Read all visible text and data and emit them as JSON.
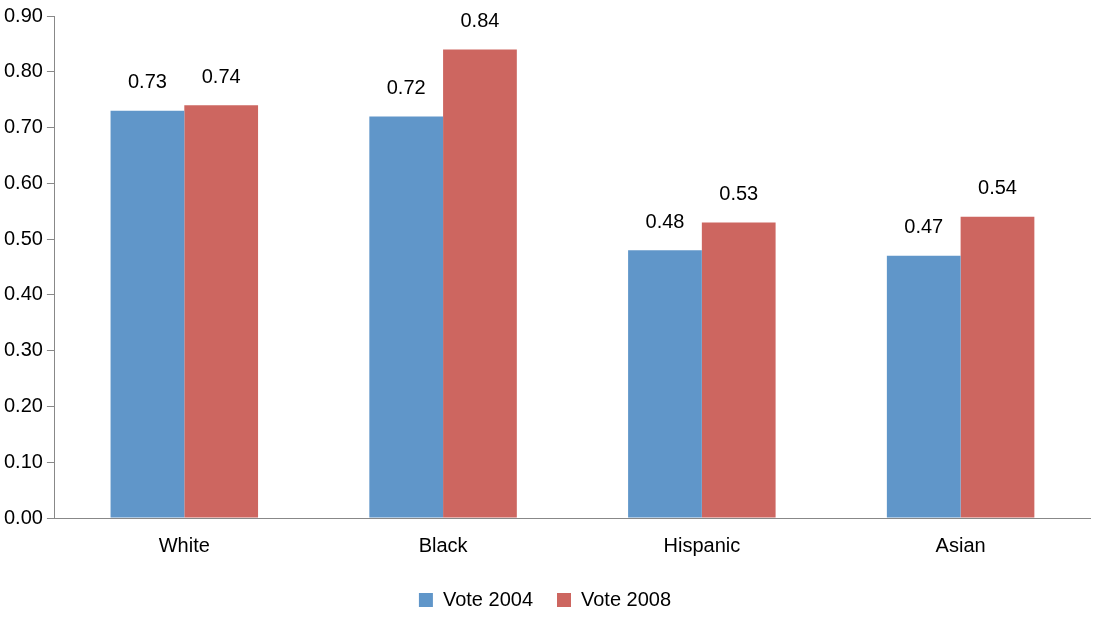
{
  "chart_data": {
    "type": "bar",
    "categories": [
      "White",
      "Black",
      "Hispanic",
      "Asian"
    ],
    "series": [
      {
        "name": "Vote 2004",
        "color": "#6096c9",
        "values": [
          0.73,
          0.72,
          0.48,
          0.47
        ]
      },
      {
        "name": "Vote 2008",
        "color": "#cd6660",
        "values": [
          0.74,
          0.84,
          0.53,
          0.54
        ]
      }
    ],
    "ylim": [
      0,
      0.9
    ],
    "yticks": [
      {
        "value": 0,
        "label": "0.00"
      },
      {
        "value": 0.1,
        "label": "0.10"
      },
      {
        "value": 0.2,
        "label": "0.20"
      },
      {
        "value": 0.3,
        "label": "0.30"
      },
      {
        "value": 0.4,
        "label": "0.40"
      },
      {
        "value": 0.5,
        "label": "0.50"
      },
      {
        "value": 0.6,
        "label": "0.60"
      },
      {
        "value": 0.7,
        "label": "0.70"
      },
      {
        "value": 0.8,
        "label": "0.80"
      },
      {
        "value": 0.9,
        "label": "0.90"
      }
    ],
    "data_labels": true,
    "grid": false,
    "legend": "bottom"
  }
}
